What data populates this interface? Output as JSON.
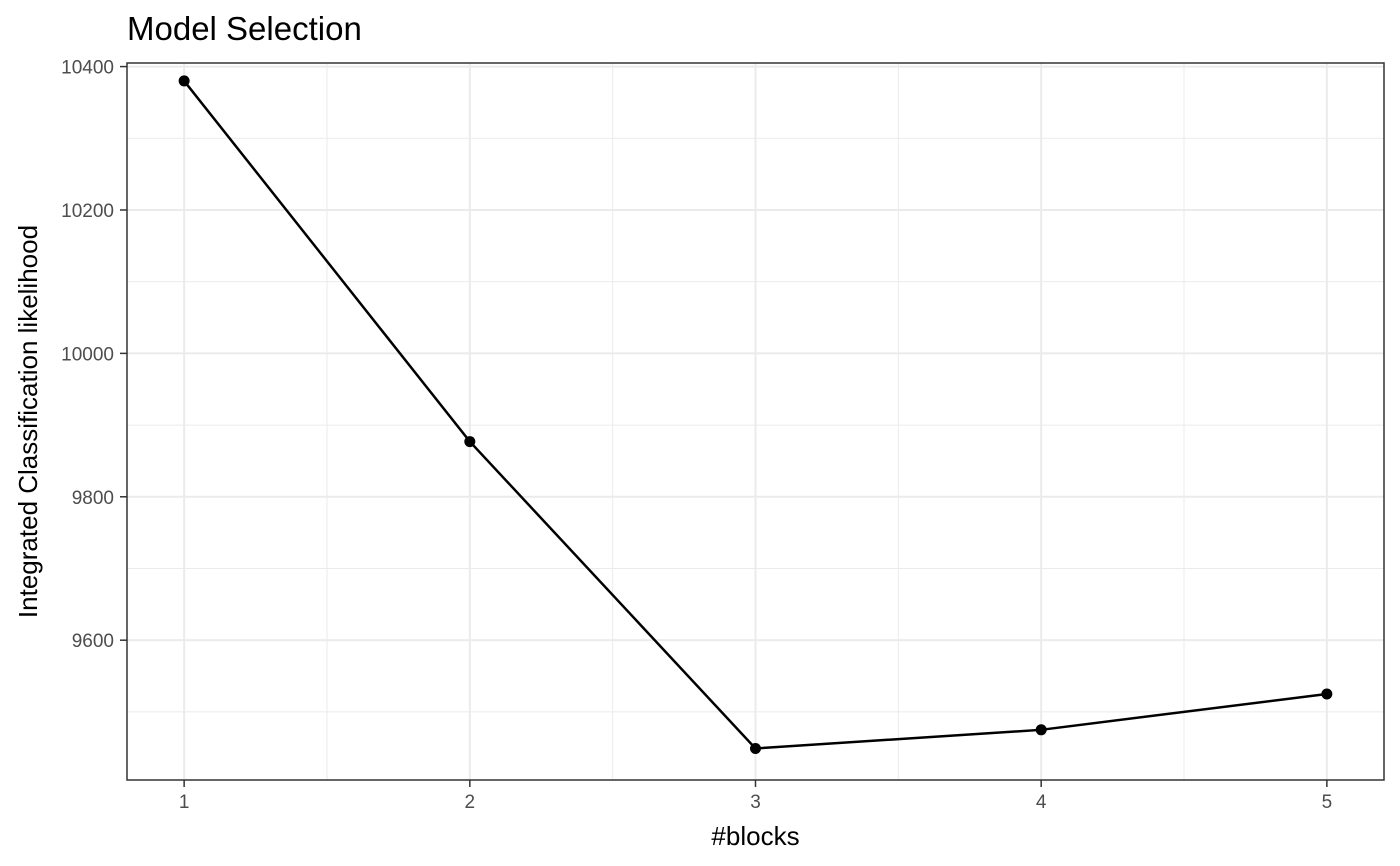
{
  "chart_data": {
    "type": "line",
    "title": "Model Selection",
    "xlabel": "#blocks",
    "ylabel": "Integrated Classification likelihood",
    "x": [
      1,
      2,
      3,
      4,
      5
    ],
    "values": [
      10380,
      9877,
      9449,
      9475,
      9525
    ],
    "xlim": [
      0.8,
      5.2
    ],
    "ylim": [
      9405,
      10405
    ],
    "x_ticks": [
      1,
      2,
      3,
      4,
      5
    ],
    "y_ticks": [
      9600,
      9800,
      10000,
      10200,
      10400
    ],
    "grid": true,
    "legend": "none",
    "colors": {
      "line": "#000000",
      "point": "#000000",
      "grid": "#ebebeb",
      "panel_border": "#333333",
      "tick_label": "#4d4d4d"
    }
  }
}
